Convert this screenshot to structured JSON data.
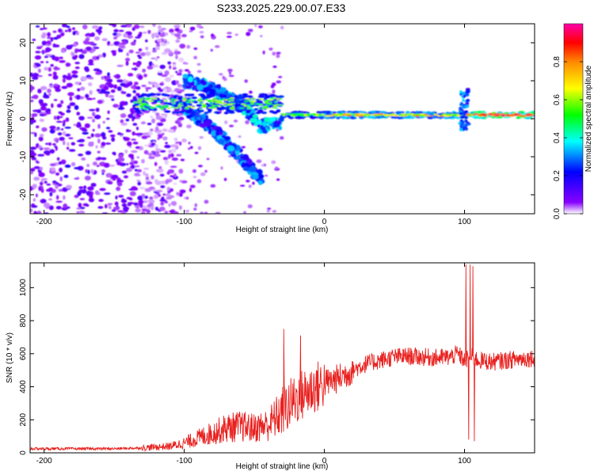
{
  "title": "S233.2025.229.00.07.E33",
  "chart_data": [
    {
      "type": "heatmap",
      "xlabel": "Height of straight line (km)",
      "ylabel": "Frequency (Hz)",
      "xlim": [
        -210,
        150
      ],
      "ylim": [
        -25,
        25
      ],
      "xticks": [
        -200,
        -100,
        0,
        100
      ],
      "yticks": [
        -20,
        -10,
        0,
        10,
        20
      ],
      "colorbar": {
        "label": "Normalized spectral amplitude",
        "range": [
          0,
          1
        ],
        "ticks": [
          0,
          0.2,
          0.4,
          0.6,
          0.8
        ],
        "tick_labels": [
          "0.0",
          "0.2",
          "0.4",
          "0.6",
          "0.8"
        ],
        "colormap": [
          "#ffffff",
          "#8800ff",
          "#0000ff",
          "#00ffff",
          "#00ff00",
          "#ffff00",
          "#ff8800",
          "#ff0000",
          "#ff00aa"
        ]
      },
      "features": [
        {
          "name": "carrier line",
          "x_range": [
            -135,
            150
          ],
          "frequency": 1,
          "amplitude": 0.75
        },
        {
          "name": "upper branch",
          "x_points": [
            -100,
            -80,
            -60,
            -45,
            -30
          ],
          "freq_points": [
            10,
            8,
            4,
            -2,
            -1
          ],
          "amplitude": 0.35
        },
        {
          "name": "lower branch",
          "x_points": [
            -100,
            -85,
            -70,
            -55,
            -45
          ],
          "freq_points": [
            3,
            -1,
            -6,
            -12,
            -16
          ],
          "amplitude": 0.3
        },
        {
          "name": "noise cloud",
          "x_range": [
            -210,
            -120
          ],
          "freq_range": [
            -25,
            25
          ],
          "amplitude": 0.15
        },
        {
          "name": "spike",
          "x": 100,
          "freq_range": [
            -3,
            8
          ],
          "amplitude": 0.3
        }
      ]
    },
    {
      "type": "line",
      "xlabel": "Height of straight line (km)",
      "ylabel": "SNR (10 * v/v)",
      "xlim": [
        -210,
        150
      ],
      "ylim": [
        0,
        1150
      ],
      "xticks": [
        -200,
        -100,
        0,
        100
      ],
      "yticks": [
        0,
        200,
        400,
        600,
        800,
        1000
      ],
      "color": "#e8211f",
      "series": [
        {
          "name": "SNR",
          "x": [
            -210,
            -180,
            -150,
            -130,
            -110,
            -100,
            -90,
            -80,
            -70,
            -60,
            -50,
            -40,
            -30,
            -20,
            -10,
            0,
            10,
            20,
            30,
            40,
            50,
            60,
            70,
            80,
            90,
            95,
            100,
            105,
            110,
            120,
            130,
            140,
            150
          ],
          "values": [
            25,
            25,
            25,
            30,
            40,
            60,
            90,
            120,
            150,
            160,
            150,
            170,
            250,
            330,
            380,
            420,
            450,
            500,
            540,
            560,
            580,
            585,
            580,
            575,
            580,
            600,
            560,
            580,
            560,
            550,
            560,
            570,
            575
          ]
        }
      ],
      "spikes": [
        {
          "x": -29,
          "value": 750
        },
        {
          "x": -17,
          "value": 710
        },
        {
          "x": 101,
          "value": 1140
        },
        {
          "x": 104,
          "value": 1140
        },
        {
          "x": 106,
          "value": 1130
        },
        {
          "x": 103,
          "value": 80
        },
        {
          "x": 107,
          "value": 70
        }
      ]
    }
  ]
}
